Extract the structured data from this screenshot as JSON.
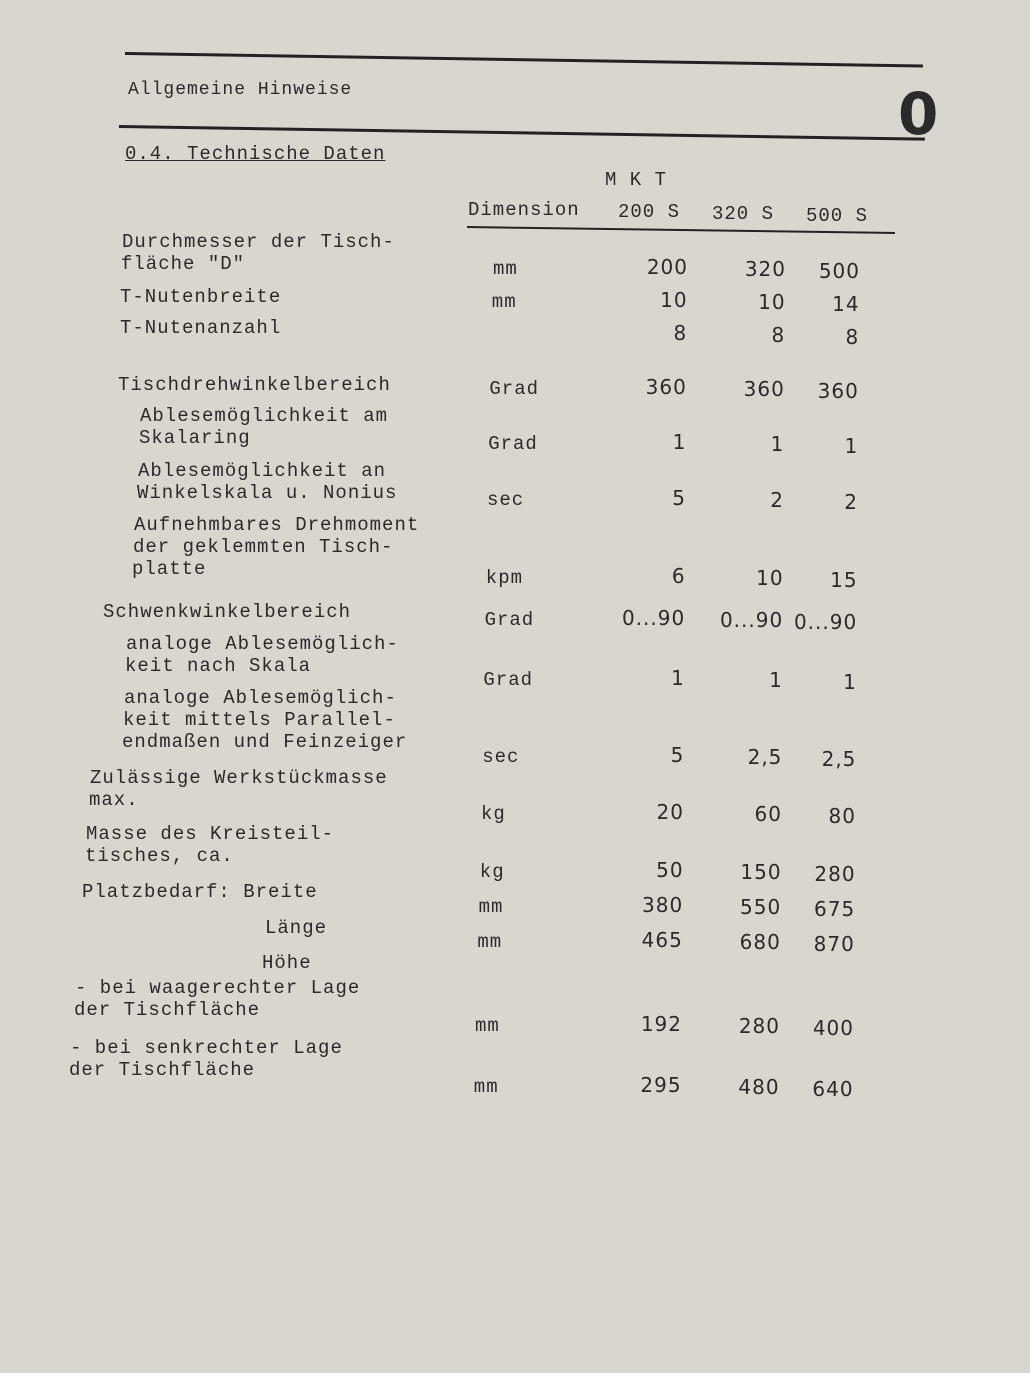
{
  "header": {
    "title": "Allgemeine Hinweise",
    "chapter": "0"
  },
  "section": {
    "title": "0.4. Technische Daten"
  },
  "table": {
    "group_header": "M K T",
    "columns": [
      "Dimension",
      "200 S",
      "320 S",
      "500 S"
    ],
    "rows": [
      {
        "label": [
          "Durchmesser der Tisch-",
          "fläche \"D\""
        ],
        "unit": "mm",
        "values": [
          "200",
          "320",
          "500"
        ]
      },
      {
        "label": [
          "T-Nutenbreite"
        ],
        "unit": "mm",
        "values": [
          "10",
          "10",
          "14"
        ]
      },
      {
        "label": [
          "T-Nutenanzahl"
        ],
        "unit": null,
        "values": [
          "8",
          "8",
          "8"
        ]
      },
      {
        "label": [
          "Tischdrehwinkelbereich"
        ],
        "unit": "Grad",
        "values": [
          "360",
          "360",
          "360"
        ]
      },
      {
        "label": [
          "Ablesemöglichkeit am",
          "Skalaring"
        ],
        "unit": "Grad",
        "values": [
          "1",
          "1",
          "1"
        ]
      },
      {
        "label": [
          "Ablesemöglichkeit an",
          "Winkelskala u. Nonius"
        ],
        "unit": "sec",
        "values": [
          "5",
          "2",
          "2"
        ]
      },
      {
        "label": [
          "Aufnehmbares Drehmoment",
          "der geklemmten Tisch-",
          "platte"
        ],
        "unit": "kpm",
        "values": [
          "6",
          "10",
          "15"
        ]
      },
      {
        "label": [
          "Schwenkwinkelbereich"
        ],
        "unit": "Grad",
        "values": [
          "0...90",
          "0...90",
          "0...90"
        ]
      },
      {
        "label": [
          "analoge Ablesemöglich-",
          "keit nach Skala"
        ],
        "unit": "Grad",
        "values": [
          "1",
          "1",
          "1"
        ]
      },
      {
        "label": [
          "analoge Ablesemöglich-",
          "keit mittels Parallel-",
          "endmaßen und Feinzeiger"
        ],
        "unit": "sec",
        "values": [
          "5",
          "2,5",
          "2,5"
        ]
      },
      {
        "label": [
          "Zulässige Werkstückmasse",
          "max."
        ],
        "unit": "kg",
        "values": [
          "20",
          "60",
          "80"
        ]
      },
      {
        "label": [
          "Masse des Kreisteil-",
          "tisches, ca."
        ],
        "unit": "kg",
        "values": [
          "50",
          "150",
          "280"
        ]
      },
      {
        "label": [
          "Platzbedarf: Breite"
        ],
        "unit": "mm",
        "values": [
          "380",
          "550",
          "675"
        ]
      },
      {
        "label": [
          "Länge"
        ],
        "unit": "mm",
        "values": [
          "465",
          "680",
          "870"
        ]
      },
      {
        "label": [
          "Höhe"
        ],
        "unit": null,
        "values": null
      },
      {
        "label": [
          "- bei waagerechter Lage",
          "der Tischfläche"
        ],
        "unit": "mm",
        "values": [
          "192",
          "280",
          "400"
        ]
      },
      {
        "label": [
          "- bei senkrechter Lage",
          "der Tischfläche"
        ],
        "unit": "mm",
        "values": [
          "295",
          "480",
          "640"
        ]
      }
    ]
  }
}
